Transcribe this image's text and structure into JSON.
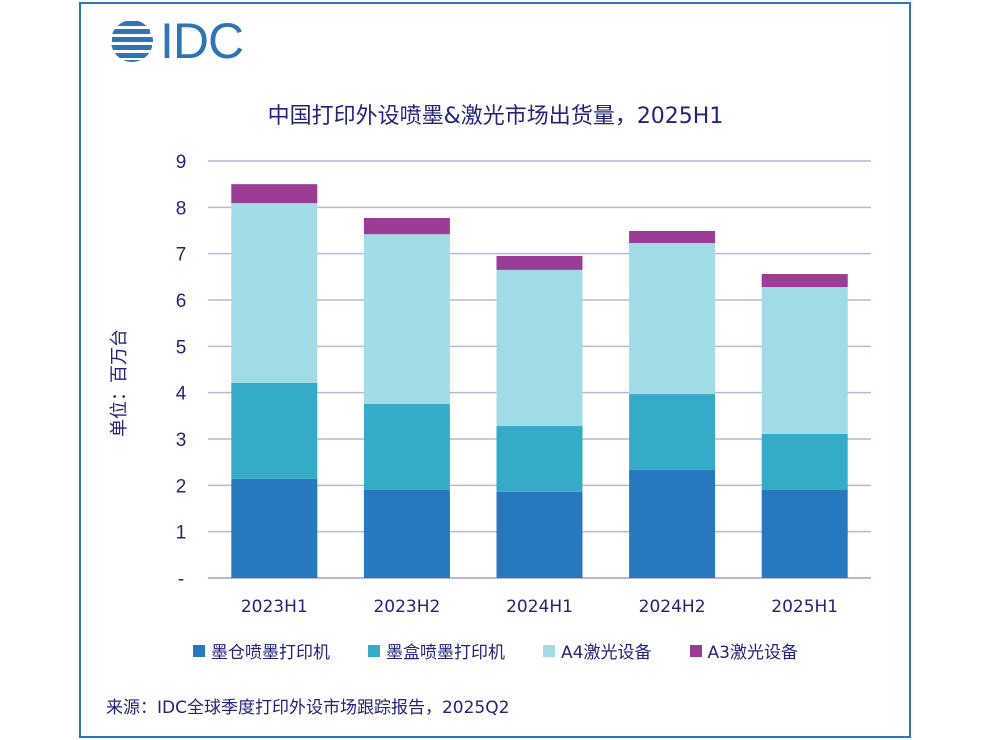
{
  "logo": {
    "text": "IDC",
    "icon": "idc-globe-icon",
    "color": "#2f74b5"
  },
  "chart_data": {
    "type": "bar",
    "stacked": true,
    "title": "中国打印外设喷墨&激光市场出货量，2025H1",
    "xlabel": "",
    "ylabel": "单位：百万台",
    "ylim": [
      0,
      9
    ],
    "yticks": [
      0,
      1,
      2,
      3,
      4,
      5,
      6,
      7,
      8,
      9
    ],
    "ytick_labels": [
      "-",
      "1",
      "2",
      "3",
      "4",
      "5",
      "6",
      "7",
      "8",
      "9"
    ],
    "grid": true,
    "categories": [
      "2023H1",
      "2023H2",
      "2024H1",
      "2024H2",
      "2025H1"
    ],
    "series": [
      {
        "name": "墨仓喷墨打印机",
        "color": "#2878be",
        "values": [
          2.14,
          1.9,
          1.86,
          2.33,
          1.9
        ]
      },
      {
        "name": "墨盒喷墨打印机",
        "color": "#35abc7",
        "values": [
          2.07,
          1.86,
          1.42,
          1.64,
          1.21
        ]
      },
      {
        "name": "A4激光设备",
        "color": "#a0dbe6",
        "values": [
          3.88,
          3.66,
          3.37,
          3.26,
          3.17
        ]
      },
      {
        "name": "A3激光设备",
        "color": "#9b3d94",
        "values": [
          0.41,
          0.35,
          0.3,
          0.26,
          0.28
        ]
      }
    ],
    "legend_position": "bottom",
    "source": "来源：IDC全球季度打印外设市场跟踪报告，2025Q2"
  },
  "colors": {
    "text": "#23237a",
    "grid": "#b9b6d6",
    "frame": "#2e75b6"
  }
}
